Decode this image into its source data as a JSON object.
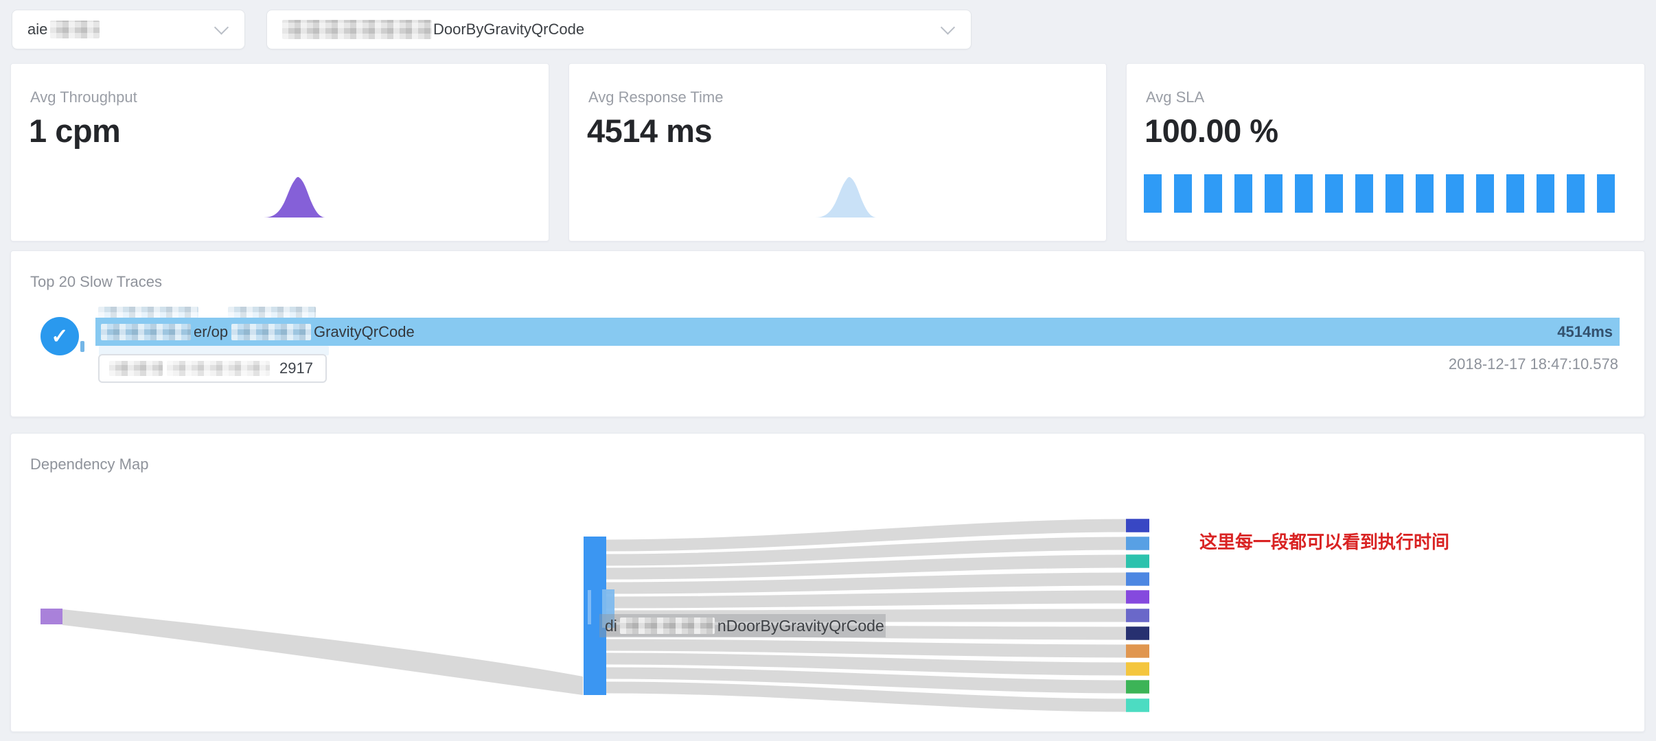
{
  "toolbar": {
    "service_select": {
      "visible_text": "aie",
      "redacted": true
    },
    "endpoint_select": {
      "visible_text": "DoorByGravityQrCode",
      "prefix_redacted": true
    }
  },
  "metric_cards": [
    {
      "label": "Avg Throughput",
      "value": "1 cpm",
      "spark": "bump",
      "color": "#8560d8"
    },
    {
      "label": "Avg Response Time",
      "value": "4514 ms",
      "spark": "bump",
      "color": "#c9e1f7"
    },
    {
      "label": "Avg SLA",
      "value": "100.00 %",
      "spark": "bars",
      "color": "#2f9bf6",
      "bar_count": 16
    }
  ],
  "slow_traces": {
    "title": "Top 20 Slow Traces",
    "row": {
      "selected": true,
      "check_glyph": "✓",
      "fragment_mid": "er/op",
      "fragment_end": "GravityQrCode",
      "duration": "4514ms",
      "timestamp": "2018-12-17 18:47:10.578",
      "id_fragment": "2917",
      "bar_color": "#87c9f1"
    }
  },
  "dependency_map": {
    "title": "Dependency Map",
    "center_label": {
      "fragment_left": "di",
      "fragment_right": "nDoorByGravityQrCode"
    },
    "annotation": {
      "text": "这里每一段都可以看到执行时间",
      "color": "#d92323"
    },
    "sankey": {
      "source_color": "#a981da",
      "hub_color": "#3b96f2",
      "hub_inner_color": "#7fbbee",
      "link_color": "#d7d7d7",
      "right_nodes": [
        "#3847c4",
        "#58a0e4",
        "#2cc2ad",
        "#4d87e2",
        "#8549de",
        "#6a68c9",
        "#273070",
        "#e0964f",
        "#f4c63e",
        "#3cb457",
        "#4cdcc2"
      ]
    }
  }
}
